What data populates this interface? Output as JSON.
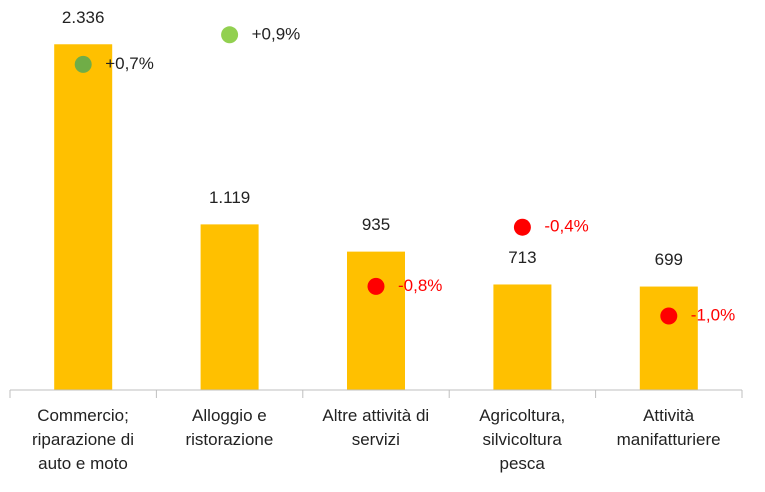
{
  "chart_data": {
    "type": "bar",
    "categories": [
      "Commercio;\nriparazione di\nauto e moto",
      "Alloggio e\nristorazione",
      "Altre attività di\nservizi",
      "Agricoltura,\nsilvicoltura\npesca",
      "Attività\nmanifatturiere"
    ],
    "ylim": [
      0,
      2500
    ],
    "y2lim": [
      -1.5,
      1.0
    ],
    "series": [
      {
        "type": "bar",
        "color": "#ffc000",
        "values": [
          2336,
          1119,
          935,
          713,
          699
        ],
        "value_labels": [
          "2.336",
          "1.119",
          "935",
          "713",
          "699"
        ]
      },
      {
        "type": "scatter",
        "axis": "y2",
        "colors": [
          "#70ad47",
          "#92d050",
          "#ff0000",
          "#ff0000",
          "#ff0000"
        ],
        "label_colors": [
          "#222222",
          "#222222",
          "#ff0000",
          "#ff0000",
          "#ff0000"
        ],
        "values": [
          0.7,
          0.9,
          -0.8,
          -0.4,
          -1.0
        ],
        "value_labels": [
          "+0,7%",
          "+0,9%",
          "-0,8%",
          "-0,4%",
          "-1,0%"
        ]
      }
    ]
  }
}
